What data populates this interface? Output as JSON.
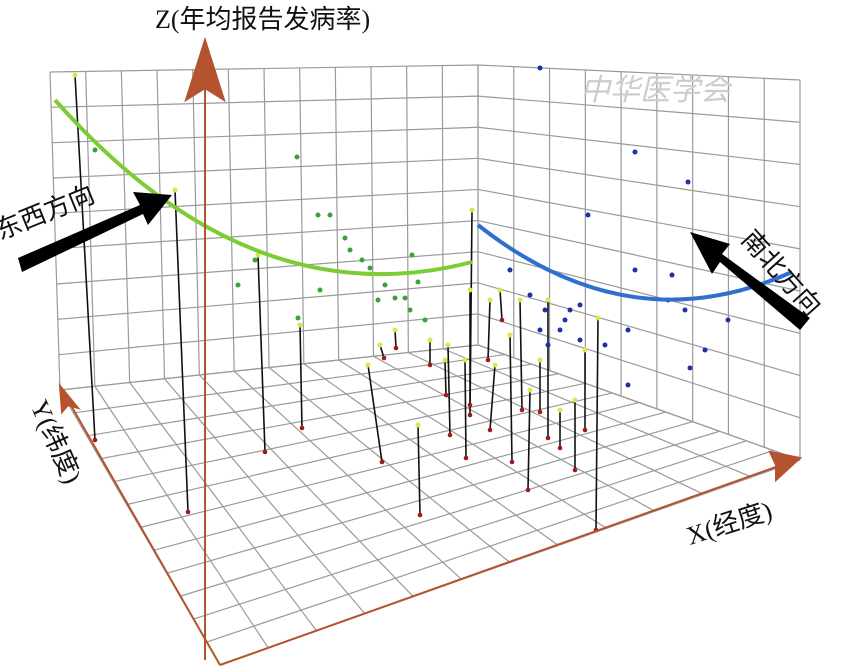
{
  "axes": {
    "z": "Z(年均报告发病率)",
    "y": "Y(纬度)",
    "x": "X(经度)"
  },
  "annotations": {
    "east_west": "东西方向",
    "north_south": "南北方向"
  },
  "watermark": "中华医学会"
}
